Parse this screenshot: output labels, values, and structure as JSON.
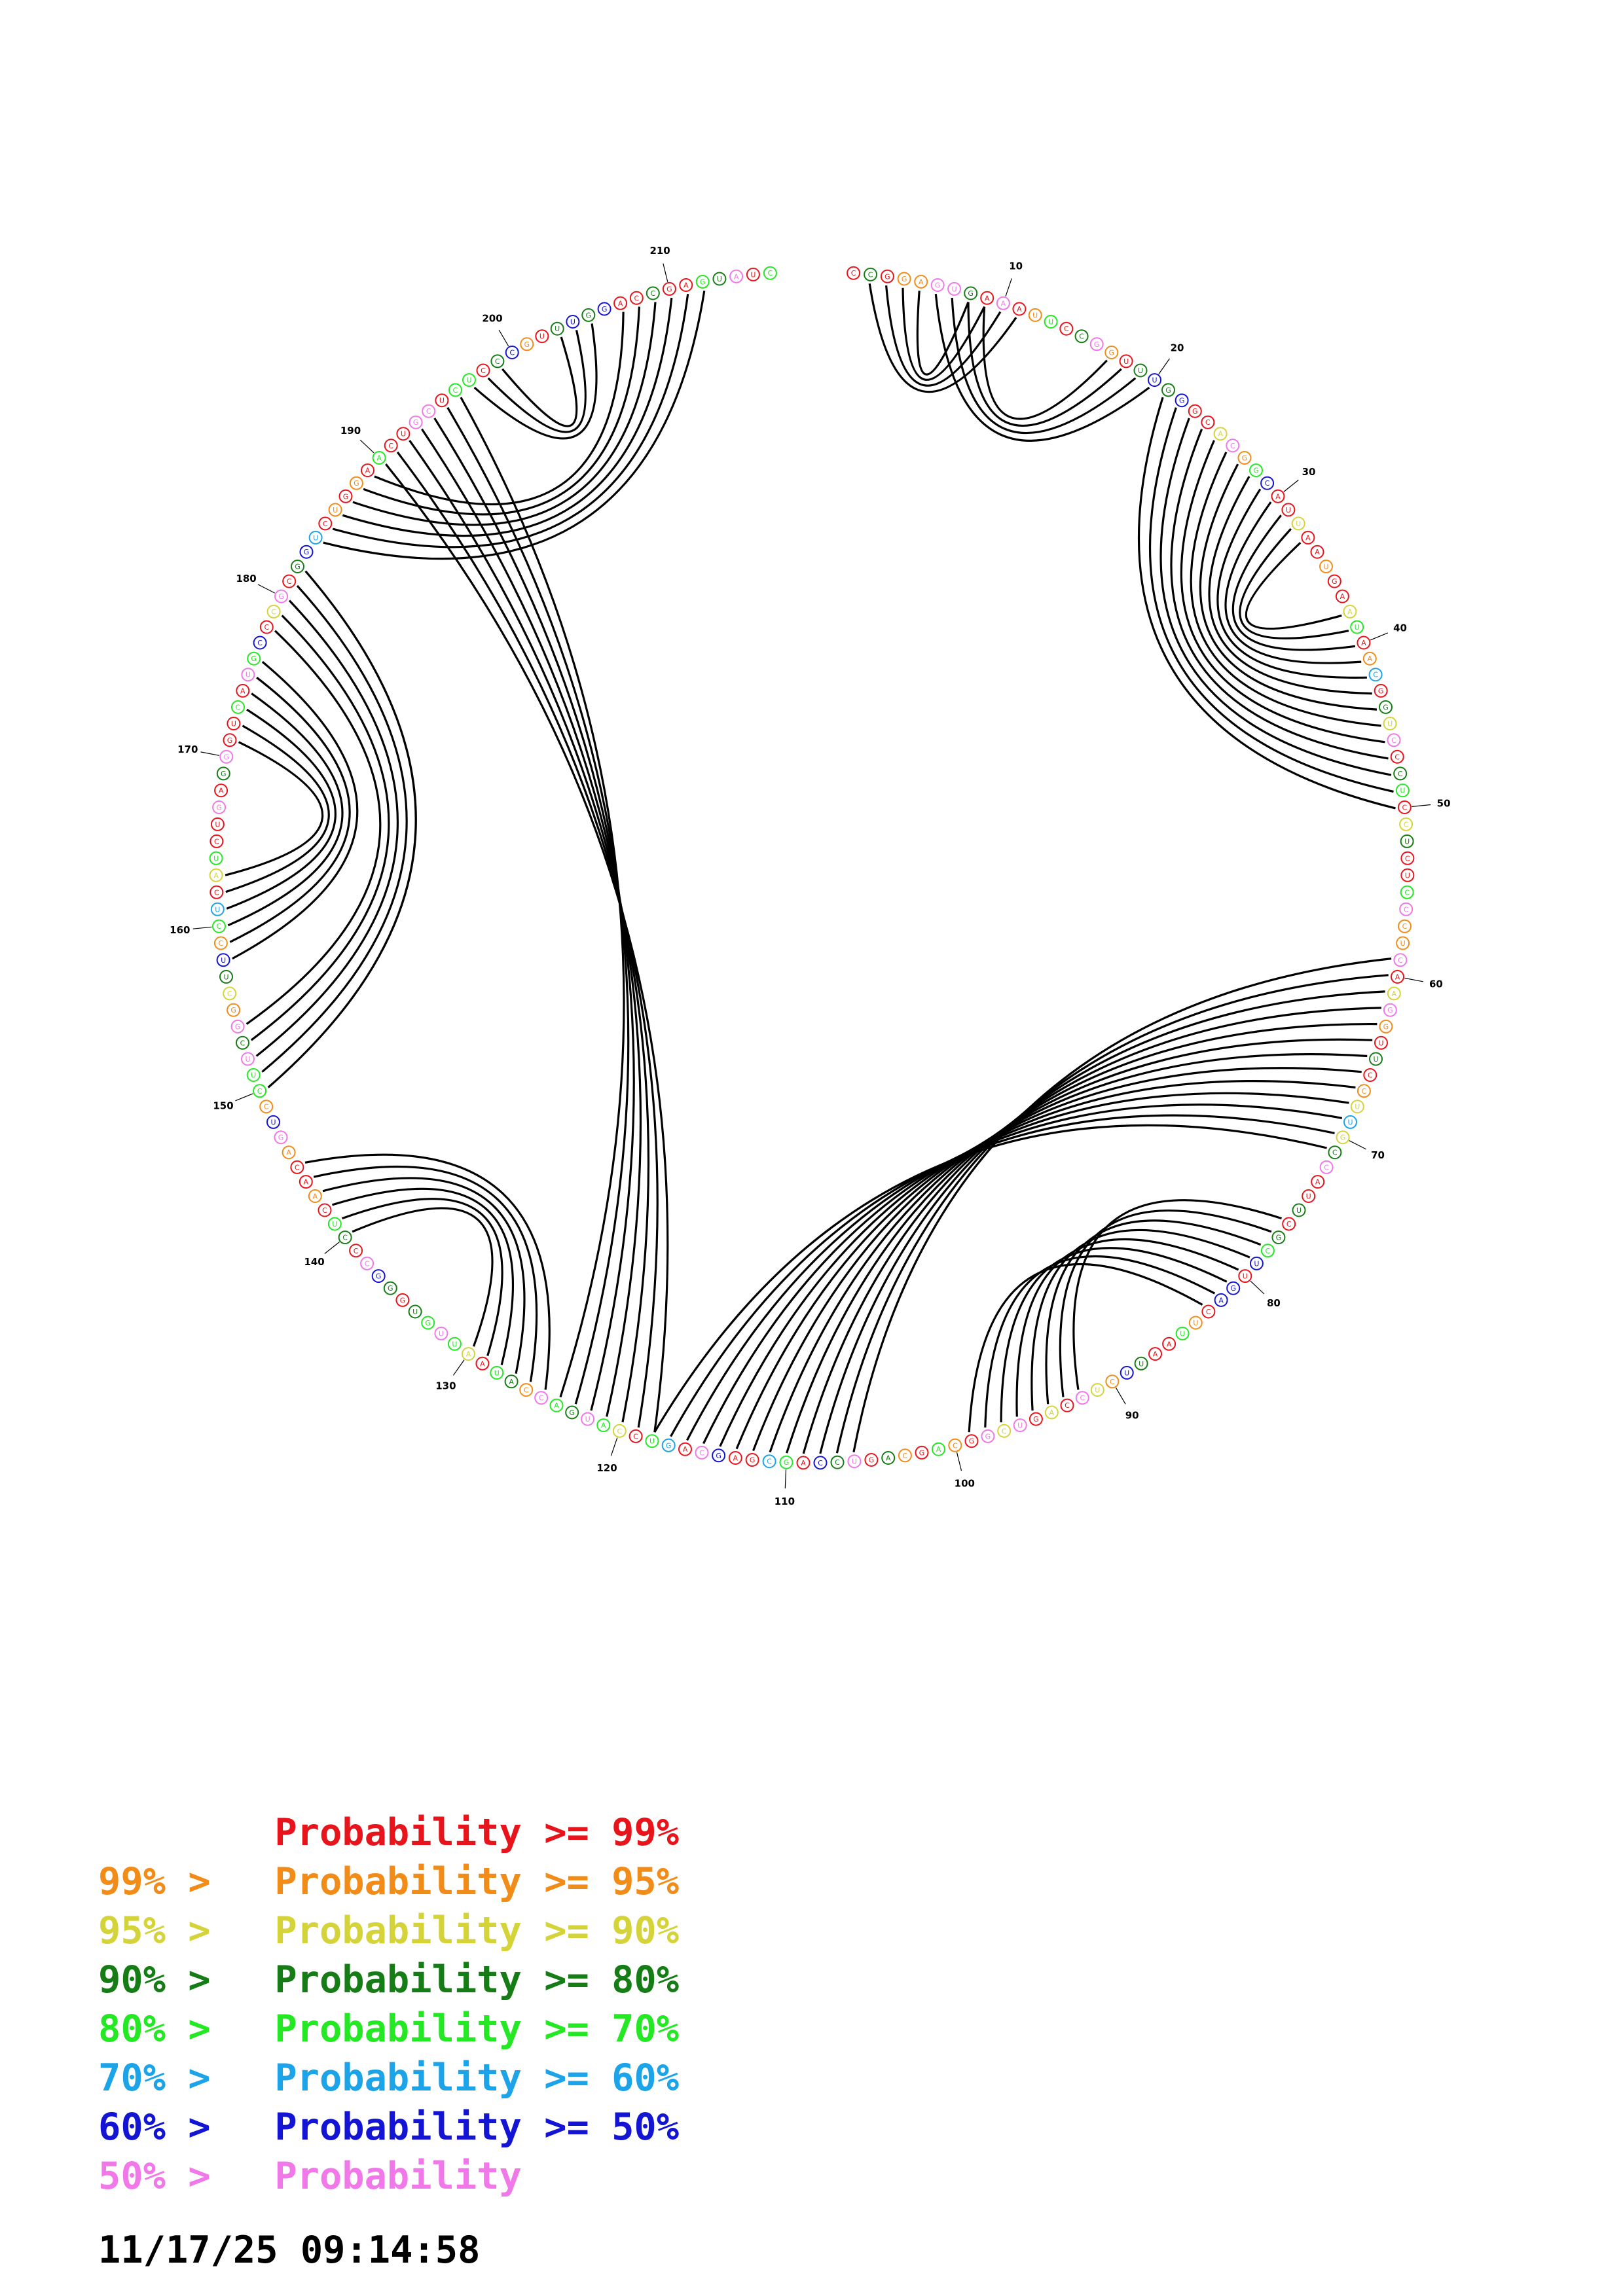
{
  "diagram": {
    "sequence": "CCGGAGUGAAAUUCCGGUUUGGGCACGGCAUUAAUGAAUAACGGUCCCUCCUCUCCCUCAAGGUUCCUUGCCAUUCGCUUGACUUAAUUCUCCAGUCGGCAGCAGUCCAGCGAGCAGUCCAUGACCAUAAUUGUGGGCCCUCAACAGUCCUUCGGCUUCCUCAUCUGAGGGUCAUGCCCGCGGUCUGGAACUGCUCUCCCGUUUGGACCGAGUAUC",
    "nucleotide_colors": {
      "red": "AAAUUUACGGCCUCCCUCAAAGCAGCAGCCAGCGCAUAACCCCUCAAGCCUUC",
      "orange": "GUUCUGGGUGUCCAGUCGCCC",
      "yellow": "UUCUGAUACCGUC",
      "darkgreen": "CGGAGCCCGAGU",
      "green": "GUGAUUCCAAGGUUCGGUGUCGAU",
      "cyan": "CCAAUG",
      "blue": "AAUUAUUGGGAUGGCUGGU",
      "pink": "CCGGCAUAAUUUCUCCUGCUCAGUCAUCCUCCCAGUCCUGACGAGGCUCUGUGGUCCCGGGAGUCCCAUGAAC"
    },
    "tick_labels": [
      "10",
      "20",
      "30",
      "40",
      "50",
      "60",
      "70",
      "80",
      "90",
      "100",
      "110",
      "120",
      "130",
      "140",
      "150",
      "160",
      "170",
      "180",
      "190",
      "200",
      "210"
    ],
    "base_pairs": [
      [
        2,
        11
      ],
      [
        3,
        10
      ],
      [
        4,
        9
      ],
      [
        5,
        8
      ],
      [
        6,
        20
      ],
      [
        7,
        19
      ],
      [
        8,
        18
      ],
      [
        9,
        17
      ],
      [
        21,
        50
      ],
      [
        22,
        49
      ],
      [
        23,
        48
      ],
      [
        24,
        47
      ],
      [
        25,
        46
      ],
      [
        26,
        45
      ],
      [
        27,
        44
      ],
      [
        28,
        43
      ],
      [
        29,
        42
      ],
      [
        30,
        41
      ],
      [
        31,
        40
      ],
      [
        32,
        39
      ],
      [
        33,
        38
      ],
      [
        59,
        106
      ],
      [
        60,
        107
      ],
      [
        61,
        108
      ],
      [
        62,
        109
      ],
      [
        63,
        110
      ],
      [
        64,
        111
      ],
      [
        65,
        112
      ],
      [
        66,
        113
      ],
      [
        67,
        114
      ],
      [
        68,
        115
      ],
      [
        69,
        116
      ],
      [
        70,
        117
      ],
      [
        71,
        118
      ],
      [
        76,
        92
      ],
      [
        77,
        93
      ],
      [
        78,
        94
      ],
      [
        79,
        95
      ],
      [
        80,
        96
      ],
      [
        81,
        97
      ],
      [
        82,
        98
      ],
      [
        83,
        99
      ],
      [
        125,
        145
      ],
      [
        126,
        144
      ],
      [
        127,
        143
      ],
      [
        128,
        142
      ],
      [
        129,
        141
      ],
      [
        130,
        140
      ],
      [
        150,
        182
      ],
      [
        151,
        181
      ],
      [
        152,
        180
      ],
      [
        153,
        179
      ],
      [
        154,
        178
      ],
      [
        158,
        176
      ],
      [
        159,
        175
      ],
      [
        160,
        174
      ],
      [
        161,
        173
      ],
      [
        162,
        172
      ],
      [
        163,
        171
      ],
      [
        118,
        190
      ],
      [
        119,
        191
      ],
      [
        120,
        192
      ],
      [
        121,
        193
      ],
      [
        122,
        194
      ],
      [
        123,
        195
      ],
      [
        124,
        196
      ],
      [
        184,
        212
      ],
      [
        185,
        211
      ],
      [
        186,
        210
      ],
      [
        187,
        209
      ],
      [
        188,
        208
      ],
      [
        189,
        207
      ],
      [
        197,
        205
      ],
      [
        198,
        204
      ],
      [
        199,
        203
      ]
    ]
  },
  "legend": [
    {
      "lower": "",
      "text": "Probability >= 99%",
      "color": "#e8141b"
    },
    {
      "lower": "99% >",
      "text": "Probability >= 95%",
      "color": "#f28c19"
    },
    {
      "lower": "95% >",
      "text": "Probability >= 90%",
      "color": "#d4d43a"
    },
    {
      "lower": "90% >",
      "text": "Probability >= 80%",
      "color": "#167d16"
    },
    {
      "lower": "80% >",
      "text": "Probability >= 70%",
      "color": "#23e823"
    },
    {
      "lower": "70% >",
      "text": "Probability >= 60%",
      "color": "#1ca3e8"
    },
    {
      "lower": "60% >",
      "text": "Probability >= 50%",
      "color": "#1414d4"
    },
    {
      "lower": "50% >",
      "text": "Probability",
      "color": "#f078e8"
    }
  ],
  "timestamp": "11/17/25 09:14:58",
  "colors": {
    "red": "#e8141b",
    "orange": "#f28c19",
    "yellow": "#d4d43a",
    "darkgreen": "#167d16",
    "green": "#23e823",
    "cyan": "#1ca3e8",
    "blue": "#1414d4",
    "pink": "#f078e8"
  }
}
